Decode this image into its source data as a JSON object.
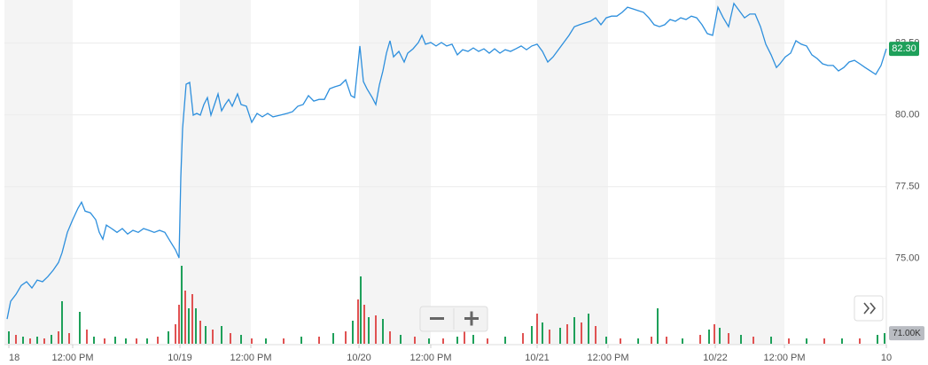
{
  "chart_data": {
    "type": "line",
    "x": [
      0.3,
      0.7,
      1.3,
      1.9,
      2.5,
      3.1,
      3.7,
      4.3,
      4.9,
      5.5,
      6.1,
      6.5,
      7.1,
      7.7,
      8.3,
      8.7,
      9.1,
      9.7,
      10.3,
      10.7,
      11.1,
      11.5,
      12.1,
      12.7,
      13.3,
      13.9,
      14.5,
      15.1,
      15.7,
      16.3,
      16.9,
      17.5,
      18.1,
      18.7,
      19.3,
      19.7,
      19.9,
      20.1,
      20.3,
      20.5,
      20.9,
      21.3,
      21.7,
      22.1,
      22.5,
      22.9,
      23.3,
      23.7,
      24.1,
      24.5,
      24.9,
      25.3,
      25.7,
      26.3,
      26.7,
      27.3,
      27.9,
      28.5,
      29.1,
      29.7,
      30.3,
      31.1,
      31.9,
      32.5,
      33.1,
      33.7,
      34.3,
      34.9,
      35.5,
      36.1,
      36.7,
      37.3,
      37.9,
      38.5,
      39.1,
      39.5,
      40.1,
      40.5,
      40.9,
      41.5,
      41.9,
      42.3,
      42.7,
      43.1,
      43.5,
      43.9,
      44.5,
      45.1,
      45.5,
      46.1,
      46.7,
      47.1,
      47.5,
      48.1,
      48.7,
      49.3,
      49.9,
      50.5,
      51.1,
      51.7,
      52.3,
      52.9,
      53.5,
      54.1,
      54.7,
      55.3,
      55.9,
      56.5,
      57.1,
      57.7,
      58.3,
      58.9,
      59.5,
      60.1,
      60.7,
      61.3,
      61.9,
      62.5,
      63.1,
      63.7,
      64.3,
      64.9,
      65.5,
      66.1,
      66.7,
      67.3,
      67.9,
      68.5,
      69.1,
      69.7,
      70.3,
      70.9,
      71.5,
      72.1,
      72.7,
      73.3,
      73.9,
      74.5,
      75.1,
      75.7,
      76.3,
      76.9,
      77.5,
      78.1,
      78.7,
      79.3,
      79.9,
      80.5,
      81.1,
      81.7,
      82.3,
      82.9,
      83.5,
      84.1,
      84.7,
      85.3,
      85.9,
      86.5,
      87.1,
      87.5,
      88.1,
      88.7,
      89.3,
      89.9,
      90.5,
      91.1,
      91.7,
      92.3,
      92.9,
      93.5,
      94.1,
      94.7,
      95.3,
      95.9,
      96.5,
      97.1,
      97.7,
      98.3,
      98.9,
      99.5
    ],
    "series": [
      {
        "color": "#2d8fdd",
        "values": [
          72.89,
          73.51,
          73.75,
          74.06,
          74.19,
          73.97,
          74.25,
          74.19,
          74.37,
          74.59,
          74.86,
          75.2,
          75.91,
          76.35,
          76.75,
          76.96,
          76.65,
          76.59,
          76.35,
          75.91,
          75.67,
          76.16,
          76.04,
          75.91,
          76.04,
          75.85,
          75.98,
          75.91,
          76.04,
          75.98,
          75.91,
          75.98,
          75.91,
          75.6,
          75.3,
          75.02,
          77.83,
          79.52,
          80.3,
          81.07,
          81.13,
          79.99,
          80.05,
          79.99,
          80.36,
          80.6,
          79.99,
          80.36,
          80.73,
          80.14,
          80.36,
          80.54,
          80.3,
          80.73,
          80.36,
          80.3,
          79.74,
          80.05,
          79.93,
          80.05,
          79.93,
          79.99,
          80.05,
          80.11,
          80.3,
          80.36,
          80.67,
          80.48,
          80.54,
          80.54,
          80.91,
          80.98,
          81.04,
          81.22,
          80.67,
          80.6,
          82.4,
          81.16,
          80.91,
          80.6,
          80.36,
          81.04,
          81.53,
          82.15,
          82.58,
          82.02,
          82.21,
          81.84,
          82.15,
          82.3,
          82.52,
          82.77,
          82.46,
          82.52,
          82.4,
          82.52,
          82.4,
          82.46,
          82.09,
          82.27,
          82.21,
          82.33,
          82.21,
          82.3,
          82.15,
          82.3,
          82.15,
          82.27,
          82.21,
          82.3,
          82.4,
          82.27,
          82.4,
          82.46,
          82.21,
          81.84,
          82.02,
          82.27,
          82.52,
          82.77,
          83.07,
          83.14,
          83.2,
          83.26,
          83.38,
          83.14,
          83.38,
          83.44,
          83.44,
          83.57,
          83.75,
          83.69,
          83.63,
          83.57,
          83.38,
          83.14,
          83.07,
          83.14,
          83.32,
          83.26,
          83.38,
          83.32,
          83.44,
          83.38,
          83.14,
          82.83,
          82.77,
          83.75,
          83.38,
          83.07,
          83.88,
          83.63,
          83.38,
          83.51,
          83.51,
          83.07,
          82.46,
          82.09,
          81.65,
          81.78,
          82.02,
          82.15,
          82.58,
          82.46,
          82.4,
          82.09,
          81.96,
          81.78,
          81.72,
          81.72,
          81.53,
          81.65,
          81.84,
          81.9,
          81.78,
          81.65,
          81.53,
          81.41,
          81.72,
          82.3
        ]
      }
    ],
    "xlim": [
      0,
      99.5
    ],
    "xticks": [
      {
        "value": 0.5,
        "label": "18"
      },
      {
        "value": 7.7,
        "label": "12:00 PM"
      },
      {
        "value": 19.8,
        "label": "10/19"
      },
      {
        "value": 27.8,
        "label": "12:00 PM"
      },
      {
        "value": 40,
        "label": "10/20"
      },
      {
        "value": 48.1,
        "label": "12:00 PM"
      },
      {
        "value": 60.1,
        "label": "10/21"
      },
      {
        "value": 68.1,
        "label": "12:00 PM"
      },
      {
        "value": 80.2,
        "label": "10/22"
      },
      {
        "value": 88,
        "label": "12:00 PM"
      },
      {
        "value": 99.5,
        "label": "10"
      }
    ],
    "ylim": [
      72,
      84
    ],
    "yticks": [
      {
        "value": 75,
        "label": "75.00"
      },
      {
        "value": 77.5,
        "label": "77.50"
      },
      {
        "value": 80,
        "label": "80.00"
      },
      {
        "value": 82.5,
        "label": "82.50"
      }
    ],
    "grid": true,
    "last_price": {
      "value": 82.3,
      "label": "82.30",
      "color": "#1ea05a"
    },
    "volume": {
      "type": "bar",
      "x": [
        0.5,
        1.3,
        2.1,
        2.9,
        3.7,
        4.5,
        5.3,
        6.1,
        6.5,
        7.3,
        8.5,
        9.3,
        10.1,
        11.3,
        12.5,
        13.7,
        14.9,
        16.1,
        17.3,
        18.5,
        19.3,
        19.7,
        20.0,
        20.4,
        20.8,
        21.2,
        21.6,
        22.1,
        22.7,
        23.5,
        24.5,
        25.5,
        26.7,
        27.9,
        29.5,
        31.5,
        33.5,
        35.5,
        37.1,
        38.5,
        39.3,
        39.9,
        40.2,
        40.6,
        41.1,
        41.9,
        42.7,
        43.5,
        44.7,
        46.3,
        47.9,
        49.5,
        51.1,
        51.9,
        52.9,
        54.5,
        56.5,
        58.5,
        59.5,
        60.1,
        60.7,
        61.5,
        62.7,
        63.5,
        64.3,
        65.1,
        65.9,
        66.7,
        67.9,
        69.5,
        71.5,
        73.0,
        73.7,
        74.7,
        76.5,
        78.5,
        79.5,
        80.1,
        80.7,
        81.7,
        83.1,
        84.5,
        86.5,
        88.5,
        90.5,
        92.5,
        94.5,
        96.5,
        98.5,
        99.3
      ],
      "values": [
        84000,
        60000,
        48000,
        36000,
        48000,
        36000,
        60000,
        84000,
        288000,
        72000,
        216000,
        96000,
        48000,
        36000,
        48000,
        36000,
        36000,
        36000,
        48000,
        84000,
        132000,
        264000,
        528000,
        360000,
        240000,
        336000,
        240000,
        156000,
        120000,
        96000,
        120000,
        72000,
        60000,
        36000,
        36000,
        36000,
        48000,
        48000,
        72000,
        84000,
        156000,
        300000,
        456000,
        264000,
        180000,
        192000,
        168000,
        84000,
        60000,
        48000,
        36000,
        36000,
        48000,
        120000,
        60000,
        36000,
        48000,
        72000,
        120000,
        204000,
        144000,
        96000,
        108000,
        132000,
        180000,
        144000,
        204000,
        120000,
        48000,
        36000,
        36000,
        48000,
        240000,
        48000,
        36000,
        60000,
        96000,
        132000,
        108000,
        72000,
        60000,
        48000,
        48000,
        36000,
        36000,
        36000,
        36000,
        36000,
        60000,
        72000
      ],
      "colors": [
        "#1ea05a",
        "#e05252",
        "#1ea05a",
        "#e05252",
        "#1ea05a",
        "#e05252",
        "#1ea05a",
        "#e05252",
        "#1ea05a",
        "#e05252",
        "#1ea05a",
        "#e05252",
        "#1ea05a",
        "#e05252",
        "#1ea05a",
        "#1ea05a",
        "#e05252",
        "#1ea05a",
        "#e05252",
        "#1ea05a",
        "#e05252",
        "#e05252",
        "#1ea05a",
        "#e05252",
        "#1ea05a",
        "#e05252",
        "#1ea05a",
        "#e05252",
        "#1ea05a",
        "#e05252",
        "#1ea05a",
        "#e05252",
        "#1ea05a",
        "#e05252",
        "#1ea05a",
        "#e05252",
        "#1ea05a",
        "#e05252",
        "#1ea05a",
        "#e05252",
        "#1ea05a",
        "#e05252",
        "#1ea05a",
        "#e05252",
        "#1ea05a",
        "#e05252",
        "#1ea05a",
        "#e05252",
        "#1ea05a",
        "#e05252",
        "#1ea05a",
        "#e05252",
        "#1ea05a",
        "#e05252",
        "#1ea05a",
        "#e05252",
        "#1ea05a",
        "#e05252",
        "#1ea05a",
        "#e05252",
        "#1ea05a",
        "#e05252",
        "#1ea05a",
        "#e05252",
        "#1ea05a",
        "#e05252",
        "#1ea05a",
        "#e05252",
        "#1ea05a",
        "#e05252",
        "#1ea05a",
        "#e05252",
        "#1ea05a",
        "#e05252",
        "#1ea05a",
        "#e05252",
        "#1ea05a",
        "#e05252",
        "#1ea05a",
        "#e05252",
        "#1ea05a",
        "#e05252",
        "#1ea05a",
        "#e05252",
        "#1ea05a",
        "#e05252",
        "#1ea05a",
        "#e05252",
        "#1ea05a",
        "#1ea05a"
      ],
      "ylim": [
        0,
        600000
      ],
      "yticks": [
        {
          "value": 71000,
          "label": "71.00K"
        }
      ],
      "tag_color": "#b9bcc2"
    }
  }
}
